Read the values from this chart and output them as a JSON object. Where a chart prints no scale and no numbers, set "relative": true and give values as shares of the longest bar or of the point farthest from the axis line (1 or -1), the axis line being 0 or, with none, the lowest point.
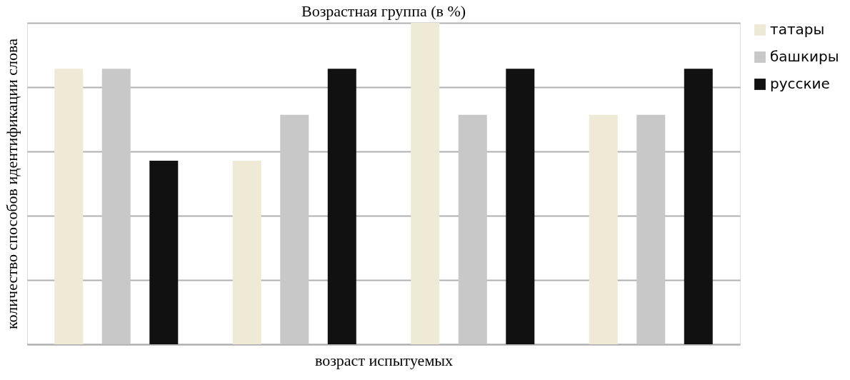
{
  "chart_data": {
    "type": "bar",
    "title": "Возрастная группа (в %)",
    "xlabel": "возраст испытуемых",
    "ylabel": "количество способов идентификации слова",
    "relative": true,
    "grid": "y",
    "legend": "right",
    "categories": [
      null,
      null,
      null,
      null
    ],
    "series": [
      {
        "name": "татары",
        "color": "#eeead6",
        "values": [
          0.857,
          0.571,
          1,
          0.714
        ]
      },
      {
        "name": "башкиры",
        "color": "#c8c8c8",
        "values": [
          0.857,
          0.714,
          0.714,
          0.714
        ]
      },
      {
        "name": "русские",
        "color": "#111111",
        "values": [
          0.571,
          0.857,
          0.857,
          0.857
        ]
      }
    ]
  }
}
